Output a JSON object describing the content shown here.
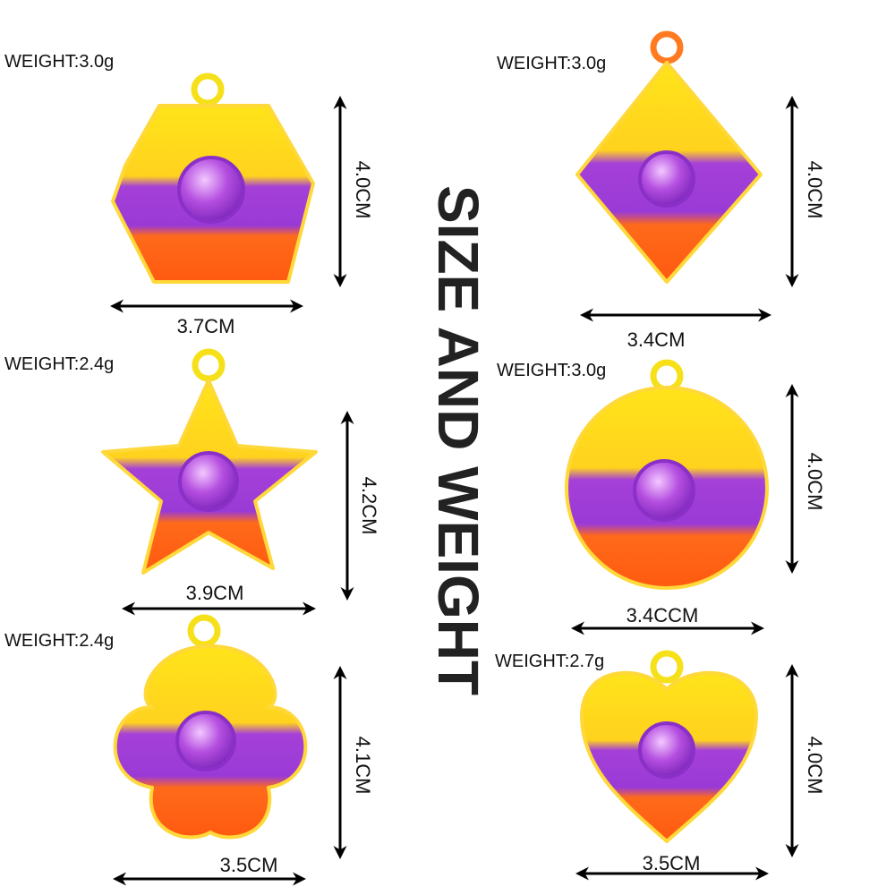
{
  "title": "SIZE AND WEIGHT",
  "items": [
    {
      "weight": "WEIGHT:3.0g",
      "height": "4.0CM",
      "width": "3.7CM"
    },
    {
      "weight": "WEIGHT:3.0g",
      "height": "4.0CM",
      "width": "3.4CM"
    },
    {
      "weight": "WEIGHT:2.4g",
      "height": "4.2CM",
      "width": "3.9CM"
    },
    {
      "weight": "WEIGHT:3.0g",
      "height": "4.0CM",
      "width": "3.4CCM"
    },
    {
      "weight": "WEIGHT:2.4g",
      "height": "4.1CM",
      "width": "3.5CM"
    },
    {
      "weight": "WEIGHT:2.7g",
      "height": "4.0CM",
      "width": "3.5CM"
    }
  ]
}
